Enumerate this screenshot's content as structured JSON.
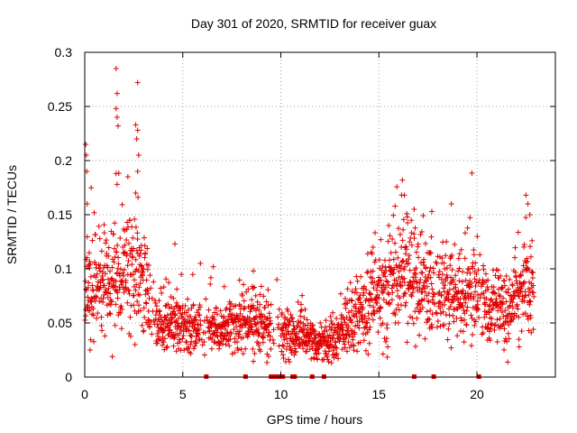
{
  "chart_data": {
    "type": "scatter",
    "title": "Day 301 of 2020, SRMTID for receiver guax",
    "xlabel": "GPS time / hours",
    "ylabel": "SRMTID / TECUs",
    "xlim": [
      0,
      24
    ],
    "ylim": [
      0,
      0.3
    ],
    "x_ticks": [
      "0",
      "5",
      "10",
      "15",
      "20"
    ],
    "y_ticks": [
      "0",
      "0.05",
      "0.1",
      "0.15",
      "0.2",
      "0.25",
      "0.3"
    ],
    "grid": true,
    "marker": "+",
    "color": "#e00000",
    "trend": [
      [
        0.0,
        0.095
      ],
      [
        0.5,
        0.085
      ],
      [
        1.0,
        0.088
      ],
      [
        1.5,
        0.095
      ],
      [
        2.0,
        0.1
      ],
      [
        2.5,
        0.1
      ],
      [
        3.0,
        0.085
      ],
      [
        3.5,
        0.06
      ],
      [
        4.0,
        0.05
      ],
      [
        5.0,
        0.045
      ],
      [
        6.0,
        0.045
      ],
      [
        7.0,
        0.045
      ],
      [
        8.0,
        0.05
      ],
      [
        8.5,
        0.055
      ],
      [
        9.0,
        0.05
      ],
      [
        9.5,
        0.045
      ],
      [
        10.0,
        0.04
      ],
      [
        11.0,
        0.04
      ],
      [
        11.5,
        0.035
      ],
      [
        12.0,
        0.03
      ],
      [
        12.5,
        0.035
      ],
      [
        13.0,
        0.04
      ],
      [
        13.5,
        0.055
      ],
      [
        14.0,
        0.065
      ],
      [
        15.0,
        0.075
      ],
      [
        16.0,
        0.09
      ],
      [
        16.5,
        0.1
      ],
      [
        17.0,
        0.085
      ],
      [
        17.5,
        0.08
      ],
      [
        18.5,
        0.075
      ],
      [
        19.5,
        0.08
      ],
      [
        20.0,
        0.075
      ],
      [
        20.5,
        0.06
      ],
      [
        21.5,
        0.06
      ],
      [
        22.5,
        0.08
      ],
      [
        23.0,
        0.09
      ]
    ],
    "spikes": [
      {
        "x": 0.05,
        "y": 0.215
      },
      {
        "x": 0.08,
        "y": 0.205
      },
      {
        "x": 0.1,
        "y": 0.19
      },
      {
        "x": 0.12,
        "y": 0.16
      },
      {
        "x": 1.6,
        "y": 0.285
      },
      {
        "x": 1.65,
        "y": 0.262
      },
      {
        "x": 1.6,
        "y": 0.248
      },
      {
        "x": 1.65,
        "y": 0.24
      },
      {
        "x": 1.7,
        "y": 0.232
      },
      {
        "x": 1.6,
        "y": 0.188
      },
      {
        "x": 1.65,
        "y": 0.178
      },
      {
        "x": 2.7,
        "y": 0.272
      },
      {
        "x": 2.6,
        "y": 0.233
      },
      {
        "x": 2.7,
        "y": 0.228
      },
      {
        "x": 2.65,
        "y": 0.22
      },
      {
        "x": 2.75,
        "y": 0.205
      },
      {
        "x": 2.7,
        "y": 0.19
      },
      {
        "x": 2.2,
        "y": 0.185
      },
      {
        "x": 2.6,
        "y": 0.17
      },
      {
        "x": 16.2,
        "y": 0.182
      },
      {
        "x": 16.3,
        "y": 0.168
      },
      {
        "x": 16.8,
        "y": 0.155
      },
      {
        "x": 17.7,
        "y": 0.153
      },
      {
        "x": 18.7,
        "y": 0.16
      },
      {
        "x": 22.5,
        "y": 0.168
      },
      {
        "x": 22.6,
        "y": 0.16
      },
      {
        "x": 22.7,
        "y": 0.15
      },
      {
        "x": 5.9,
        "y": 0.105
      },
      {
        "x": 4.6,
        "y": 0.123
      },
      {
        "x": 8.6,
        "y": 0.098
      },
      {
        "x": 9.8,
        "y": 0.09
      },
      {
        "x": 15.5,
        "y": 0.14
      },
      {
        "x": 14.7,
        "y": 0.12
      }
    ],
    "gap_markers_x": [
      6.2,
      8.2,
      9.5,
      9.6,
      9.7,
      9.8,
      9.9,
      10.1,
      10.6,
      10.7,
      11.6,
      12.2,
      16.8,
      17.8,
      20.1
    ]
  }
}
